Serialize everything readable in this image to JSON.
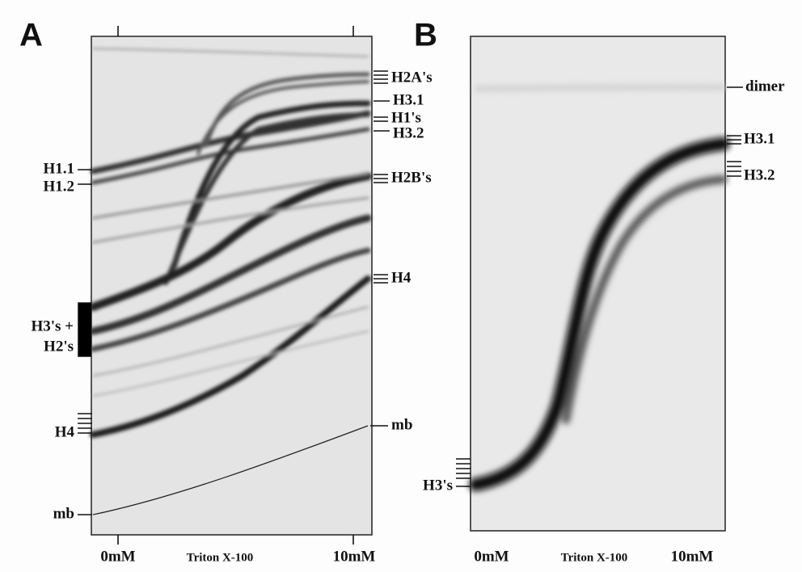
{
  "panels": [
    {
      "letter": "A",
      "right_labels": [
        "H2A's",
        "H3.1",
        "H1's",
        "H3.2",
        "H2B's",
        "H4",
        "mb"
      ],
      "left_labels": [
        "H1.1",
        "H1.2",
        "H3's +",
        "H2's",
        "H4",
        "mb"
      ],
      "axis_labels": [
        "0mM",
        "Triton X-100",
        "10mM"
      ]
    },
    {
      "letter": "B",
      "right_labels": [
        "dimer",
        "H3.1",
        "H3.2"
      ],
      "left_labels": [
        "H3's"
      ],
      "axis_labels": [
        "0mM",
        "Triton X-100",
        "10mM"
      ]
    }
  ]
}
